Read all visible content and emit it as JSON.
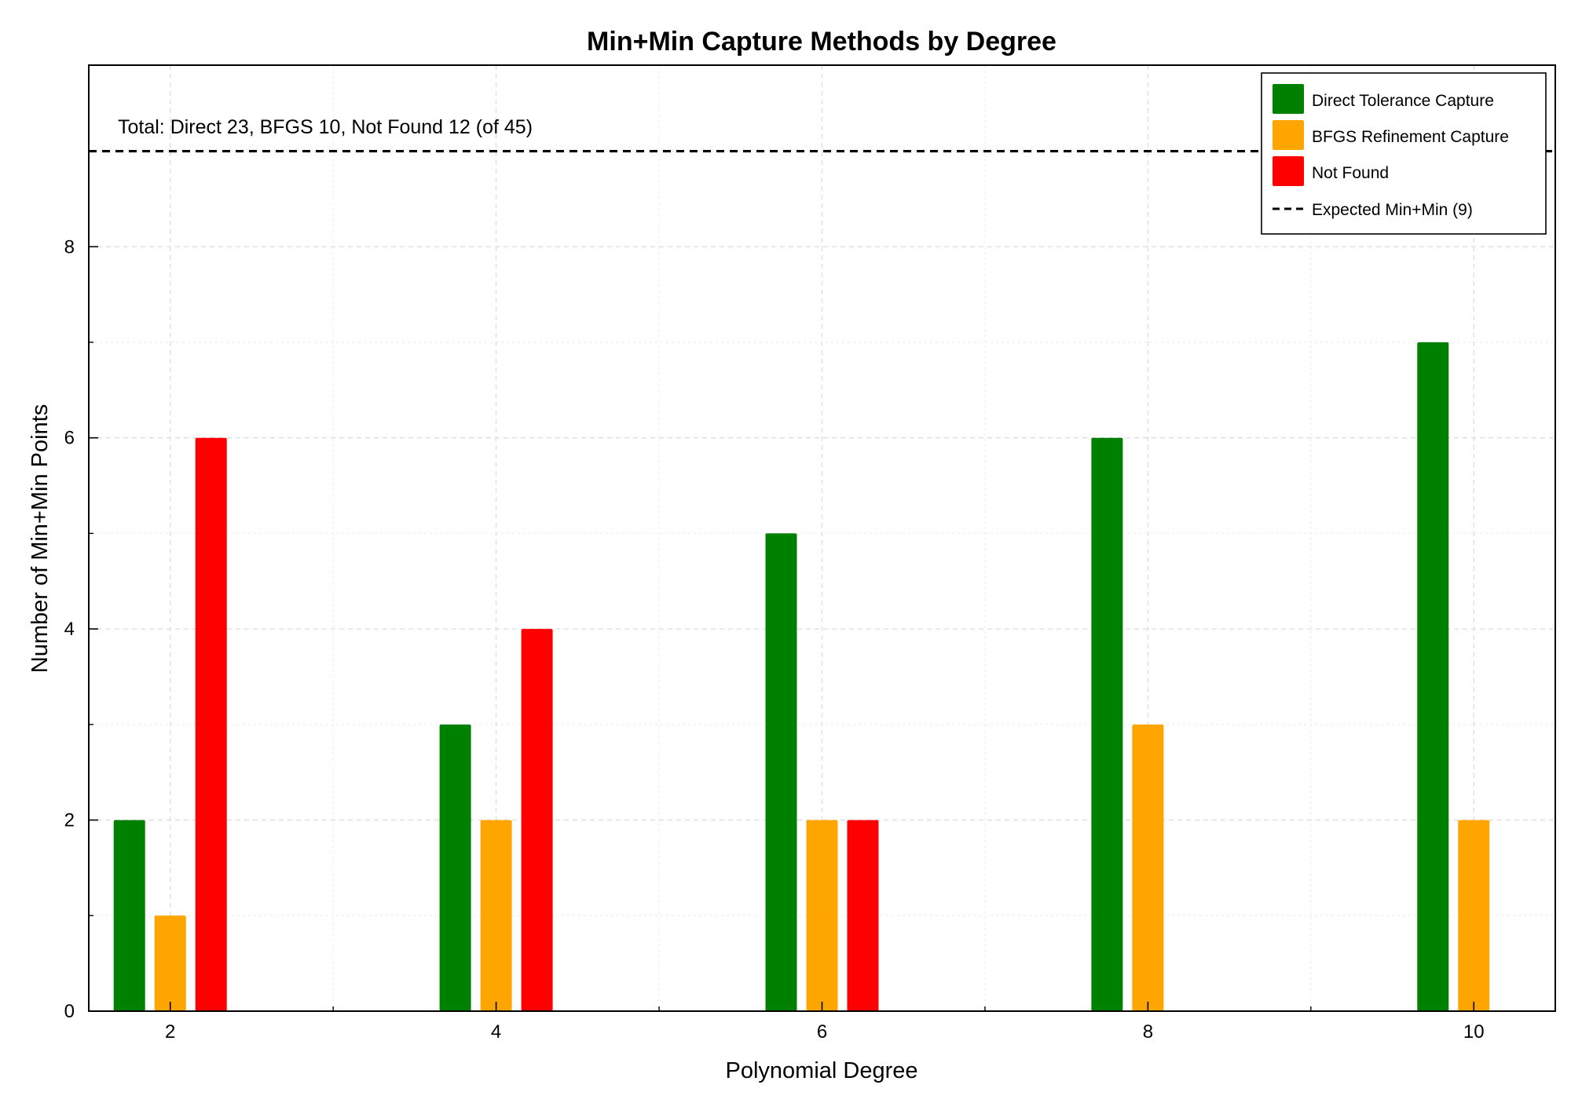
{
  "chart_data": {
    "type": "bar",
    "title": "Min+Min Capture Methods by Degree",
    "xlabel": "Polynomial Degree",
    "ylabel": "Number of Min+Min Points",
    "categories": [
      "2",
      "4",
      "6",
      "8",
      "10"
    ],
    "x": [
      2,
      4,
      6,
      8,
      10
    ],
    "xlim": [
      1.5,
      10.5
    ],
    "ylim": [
      0,
      9.9
    ],
    "x_ticks": [
      2,
      4,
      6,
      8,
      10
    ],
    "y_ticks": [
      0,
      2,
      4,
      6,
      8
    ],
    "grid": true,
    "legend_position": "top-right",
    "series": [
      {
        "name": "Direct Tolerance Capture",
        "color": "#008000",
        "values": [
          2,
          3,
          5,
          6,
          7
        ]
      },
      {
        "name": "BFGS Refinement Capture",
        "color": "#ffa500",
        "values": [
          1,
          2,
          2,
          3,
          2
        ]
      },
      {
        "name": "Not Found",
        "color": "#ff0000",
        "values": [
          6,
          4,
          2,
          0,
          0
        ]
      }
    ],
    "reference_line": {
      "name": "Expected Min+Min (9)",
      "value": 9,
      "style": "dashed",
      "color": "#000000"
    },
    "annotation": "Total: Direct 23, BFGS 10, Not Found 12 (of 45)"
  }
}
